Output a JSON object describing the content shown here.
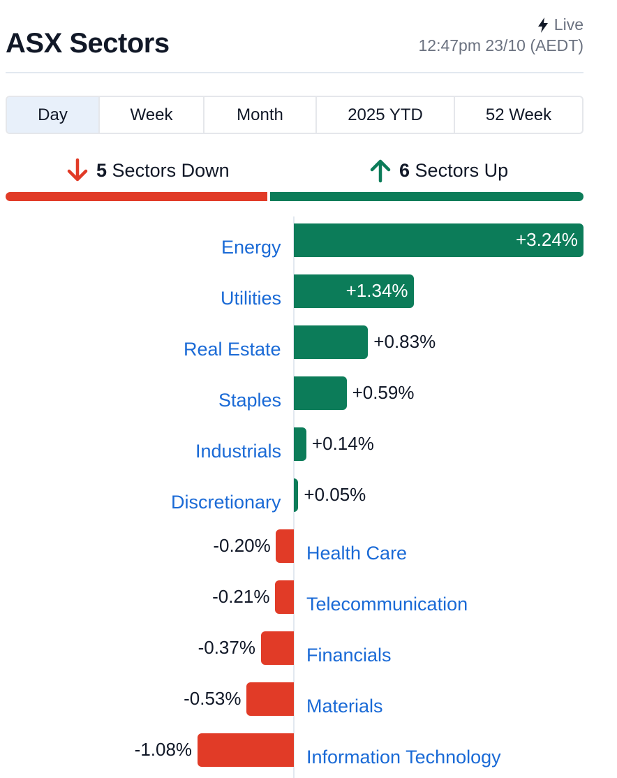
{
  "header": {
    "title": "ASX Sectors",
    "live_label": "Live",
    "live_icon": "lightning-icon",
    "timestamp": "12:47pm 23/10 (AEDT)"
  },
  "tabs": [
    {
      "label": "Day",
      "active": true
    },
    {
      "label": "Week",
      "active": false
    },
    {
      "label": "Month",
      "active": false
    },
    {
      "label": "2025 YTD",
      "active": false
    },
    {
      "label": "52 Week",
      "active": false
    }
  ],
  "summary": {
    "down_count": "5",
    "down_text": "Sectors Down",
    "down_icon": "arrow-down-icon",
    "up_count": "6",
    "up_text": "Sectors Up",
    "up_icon": "arrow-up-icon"
  },
  "colors": {
    "positive": "#0c7c59",
    "negative": "#e13b27",
    "link": "#1a6ad6"
  },
  "chart_data": {
    "type": "bar",
    "orientation": "horizontal",
    "categories": [
      "Energy",
      "Utilities",
      "Real Estate",
      "Staples",
      "Industrials",
      "Discretionary",
      "Health Care",
      "Telecommunication",
      "Financials",
      "Materials",
      "Information Technology"
    ],
    "values": [
      3.24,
      1.34,
      0.83,
      0.59,
      0.14,
      0.05,
      -0.2,
      -0.21,
      -0.37,
      -0.53,
      -1.08
    ],
    "labels": [
      "+3.24%",
      "+1.34%",
      "+0.83%",
      "+0.59%",
      "+0.14%",
      "+0.05%",
      "-0.20%",
      "-0.21%",
      "-0.37%",
      "-0.53%",
      "-1.08%"
    ],
    "unit": "%",
    "title": "",
    "xlabel": "",
    "ylabel": "",
    "grid": false
  }
}
